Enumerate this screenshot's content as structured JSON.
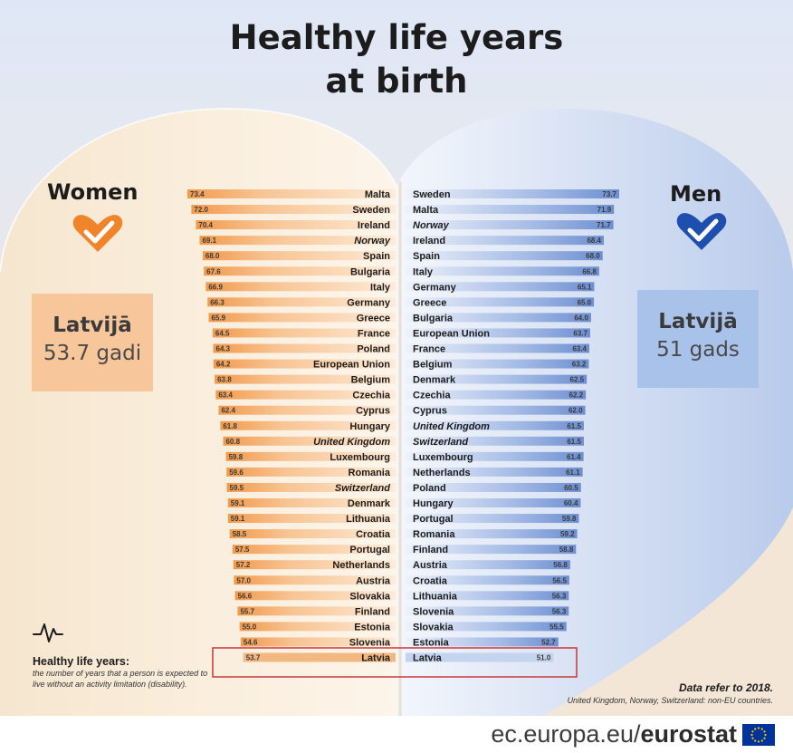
{
  "title": {
    "line1": "Healthy life years",
    "line2": "at birth"
  },
  "women": {
    "heading": "Women",
    "latvia_label": "Latvijā",
    "latvia_value": "53.7 gadi",
    "color": "#f0842a"
  },
  "men": {
    "heading": "Men",
    "latvia_label": "Latvijā",
    "latvia_value": "51 gads",
    "color": "#2357b5"
  },
  "chart_data": [
    {
      "type": "bar",
      "orientation": "horizontal",
      "title": "Women",
      "bar_color": "#f0842a",
      "xlim": [
        0,
        73.4
      ],
      "highlight": "Latvia",
      "italic_categories": [
        "Norway",
        "United Kingdom",
        "Switzerland"
      ],
      "categories": [
        "Malta",
        "Sweden",
        "Ireland",
        "Norway",
        "Spain",
        "Bulgaria",
        "Italy",
        "Germany",
        "Greece",
        "France",
        "Poland",
        "European Union",
        "Belgium",
        "Czechia",
        "Cyprus",
        "Hungary",
        "United Kingdom",
        "Luxembourg",
        "Romania",
        "Switzerland",
        "Denmark",
        "Lithuania",
        "Croatia",
        "Portugal",
        "Netherlands",
        "Austria",
        "Slovakia",
        "Finland",
        "Estonia",
        "Slovenia",
        "Latvia"
      ],
      "values": [
        73.4,
        72.0,
        70.4,
        69.1,
        68.0,
        67.6,
        66.9,
        66.3,
        65.9,
        64.5,
        64.3,
        64.2,
        63.8,
        63.4,
        62.4,
        61.8,
        60.8,
        59.8,
        59.6,
        59.5,
        59.1,
        59.1,
        58.5,
        57.5,
        57.2,
        57.0,
        56.6,
        55.7,
        55.0,
        54.6,
        53.7
      ],
      "value_labels": [
        "73.4",
        "72.0",
        "70.4",
        "69.1",
        "68.0",
        "67.6",
        "66.9",
        "66.3",
        "65.9",
        "64.5",
        "64.3",
        "64.2",
        "63.8",
        "63.4",
        "62.4",
        "61.8",
        "60.8",
        "59.8",
        "59.6",
        "59.5",
        "59.1",
        "59.1",
        "58.5",
        "57.5",
        "57.2",
        "57.0",
        "56.6",
        "55.7",
        "55.0",
        "54.6",
        "53.7"
      ]
    },
    {
      "type": "bar",
      "orientation": "horizontal",
      "title": "Men",
      "bar_color": "#2357b5",
      "xlim": [
        0,
        73.7
      ],
      "highlight": "Latvia",
      "italic_categories": [
        "Norway",
        "United Kingdom",
        "Switzerland"
      ],
      "categories": [
        "Sweden",
        "Malta",
        "Norway",
        "Ireland",
        "Spain",
        "Italy",
        "Germany",
        "Greece",
        "Bulgaria",
        "European Union",
        "France",
        "Belgium",
        "Denmark",
        "Czechia",
        "Cyprus",
        "United Kingdom",
        "Switzerland",
        "Luxembourg",
        "Netherlands",
        "Poland",
        "Hungary",
        "Portugal",
        "Romania",
        "Finland",
        "Austria",
        "Croatia",
        "Lithuania",
        "Slovenia",
        "Slovakia",
        "Estonia",
        "Latvia"
      ],
      "values": [
        73.7,
        71.9,
        71.7,
        68.4,
        68.0,
        66.8,
        65.1,
        65.0,
        64.0,
        63.7,
        63.4,
        63.2,
        62.5,
        62.2,
        62.0,
        61.5,
        61.5,
        61.4,
        61.1,
        60.5,
        60.4,
        59.8,
        59.2,
        58.8,
        56.8,
        56.5,
        56.3,
        56.3,
        55.5,
        52.7,
        51.0
      ],
      "value_labels": [
        "73.7",
        "71.9",
        "71.7",
        "68.4",
        "68.0",
        "66.8",
        "65.1",
        "65.0",
        "64.0",
        "63.7",
        "63.4",
        "63.2",
        "62.5",
        "62.2",
        "62.0",
        "61.5",
        "61.5",
        "61.4",
        "61.1",
        "60.5",
        "60.4",
        "59.8",
        "59.2",
        "58.8",
        "56.8",
        "56.5",
        "56.3",
        "56.3",
        "55.5",
        "52.7",
        "51.0"
      ]
    }
  ],
  "note": {
    "title": "Healthy life years:",
    "text": "the number of years that a person is expected to live without an activity limitation (disability)."
  },
  "data_ref": {
    "title": "Data refer to 2018.",
    "note": "United Kingdom, Norway, Switzerland: non-EU countries."
  },
  "footer": {
    "url_prefix": "ec.europa.eu/",
    "url_brand": "eurostat"
  }
}
